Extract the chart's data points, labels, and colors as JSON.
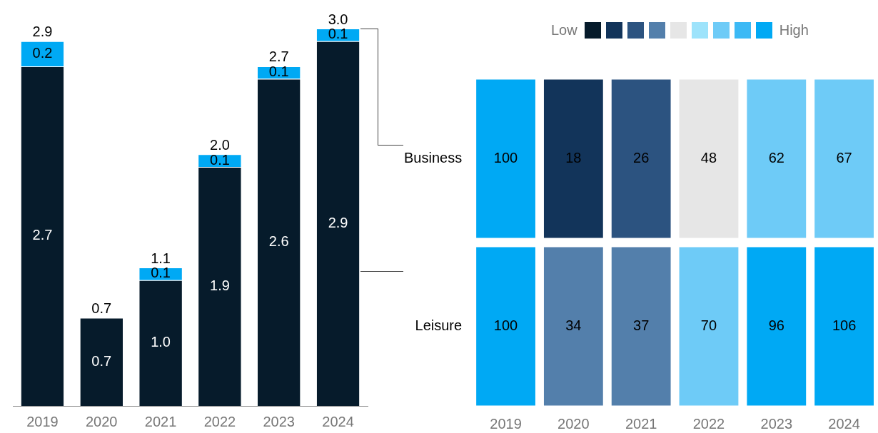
{
  "chart_data": [
    {
      "type": "bar",
      "categories": [
        "2019",
        "2020",
        "2021",
        "2022",
        "2023",
        "2024"
      ],
      "stacked": true,
      "relative": false,
      "series": [
        {
          "color": "#061b2b",
          "values": [
            2.7,
            0.7,
            1.0,
            1.9,
            2.6,
            2.9
          ],
          "value_labels": [
            "2.7",
            "0.7",
            "1.0",
            "1.9",
            "2.6",
            "2.9"
          ]
        },
        {
          "color": "#00a9f4",
          "values": [
            0.2,
            null,
            0.1,
            0.1,
            0.1,
            0.1
          ],
          "value_labels": [
            "0.2",
            null,
            "0.1",
            "0.1",
            "0.1",
            "0.1"
          ]
        }
      ],
      "totals": [
        "2.9",
        "0.7",
        "1.1",
        "2.0",
        "2.7",
        "3.0"
      ]
    },
    {
      "type": "heatmap",
      "categories": [
        "2019",
        "2020",
        "2021",
        "2022",
        "2023",
        "2024"
      ],
      "y_categories": [
        "Business",
        "Leisure"
      ],
      "cells": [
        [
          100,
          18,
          26,
          48,
          62,
          67
        ],
        [
          100,
          34,
          37,
          70,
          96,
          106
        ]
      ],
      "colors": [
        [
          "#00a9f4",
          "#12345a",
          "#2c5380",
          "#e6e6e6",
          "#6ecbf7",
          "#6ecbf7"
        ],
        [
          "#00a9f4",
          "#537fab",
          "#537fab",
          "#6ecbf7",
          "#00a9f4",
          "#00a9f4"
        ]
      ],
      "data_labels": true,
      "annotations": [
        "Low",
        "High"
      ]
    }
  ]
}
